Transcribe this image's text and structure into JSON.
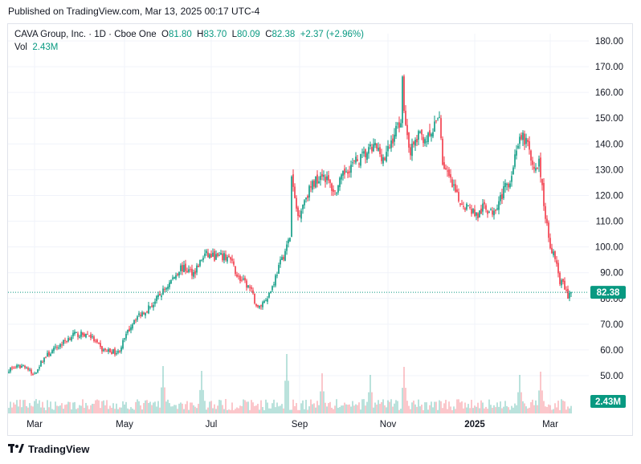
{
  "header": {
    "published": "Published on TradingView.com, Mar 13, 2025 00:17 UTC-4"
  },
  "legend": {
    "symbol": "CAVA Group, Inc. · 1D · Cboe One",
    "o_label": "O",
    "o_value": "81.80",
    "h_label": "H",
    "h_value": "83.70",
    "l_label": "L",
    "l_value": "80.09",
    "c_label": "C",
    "c_value": "82.38",
    "change": "+2.37 (+2.96%)",
    "vol_label": "Vol",
    "vol_value": "2.43M"
  },
  "footer": {
    "brand": "TradingView"
  },
  "colors": {
    "up": "#089981",
    "down": "#f23645",
    "last_price": "#089981"
  },
  "chart_data": {
    "type": "candlestick",
    "title": "CAVA Group, Inc. · 1D · Cboe One",
    "ylim": [
      42,
      184
    ],
    "y_ticks": [
      "180.00",
      "170.00",
      "160.00",
      "150.00",
      "140.00",
      "130.00",
      "120.00",
      "110.00",
      "100.00",
      "90.00",
      "80.00",
      "70.00",
      "60.00",
      "50.00"
    ],
    "x_ticks": [
      "Mar",
      "May",
      "Jul",
      "Sep",
      "Nov",
      "2025",
      "Mar"
    ],
    "last_price": 82.38,
    "last_price_label": "82.38",
    "volume_label": "2.43M",
    "close_path": [
      [
        0,
        52.5
      ],
      [
        10,
        54
      ],
      [
        15,
        50
      ],
      [
        22,
        57
      ],
      [
        32,
        62
      ],
      [
        40,
        66
      ],
      [
        50,
        66
      ],
      [
        58,
        60
      ],
      [
        68,
        59
      ],
      [
        78,
        72
      ],
      [
        90,
        78
      ],
      [
        100,
        86
      ],
      [
        107,
        92
      ],
      [
        115,
        90
      ],
      [
        122,
        97
      ],
      [
        130,
        96
      ],
      [
        137,
        96
      ],
      [
        143,
        88
      ],
      [
        150,
        84
      ],
      [
        155,
        76
      ],
      [
        160,
        80
      ],
      [
        163,
        83
      ],
      [
        168,
        92
      ],
      [
        173,
        100
      ],
      [
        175,
        104
      ],
      [
        176,
        127
      ],
      [
        178,
        118
      ],
      [
        180,
        112
      ],
      [
        185,
        120
      ],
      [
        190,
        125
      ],
      [
        195,
        129
      ],
      [
        203,
        121
      ],
      [
        210,
        130
      ],
      [
        220,
        135
      ],
      [
        228,
        139
      ],
      [
        234,
        134
      ],
      [
        240,
        144
      ],
      [
        244,
        150
      ],
      [
        245,
        164
      ],
      [
        247,
        147
      ],
      [
        250,
        137
      ],
      [
        255,
        143
      ],
      [
        262,
        142
      ],
      [
        266,
        148
      ],
      [
        268,
        152
      ],
      [
        270,
        133
      ],
      [
        275,
        125
      ],
      [
        280,
        118
      ],
      [
        287,
        115
      ],
      [
        292,
        112
      ],
      [
        296,
        116
      ],
      [
        300,
        113
      ],
      [
        305,
        118
      ],
      [
        310,
        124
      ],
      [
        313,
        128
      ],
      [
        316,
        139
      ],
      [
        320,
        142
      ],
      [
        323,
        140
      ],
      [
        326,
        130
      ],
      [
        330,
        133
      ],
      [
        333,
        117
      ],
      [
        336,
        103
      ],
      [
        340,
        95
      ],
      [
        343,
        87
      ],
      [
        346,
        84
      ],
      [
        348,
        81
      ],
      [
        350,
        82.38
      ]
    ],
    "volume_spikes": [
      [
        96,
        59
      ],
      [
        173,
        74
      ],
      [
        246,
        58
      ],
      [
        195,
        50
      ],
      [
        120,
        53
      ],
      [
        331,
        52
      ],
      [
        318,
        48
      ],
      [
        225,
        48
      ]
    ]
  }
}
